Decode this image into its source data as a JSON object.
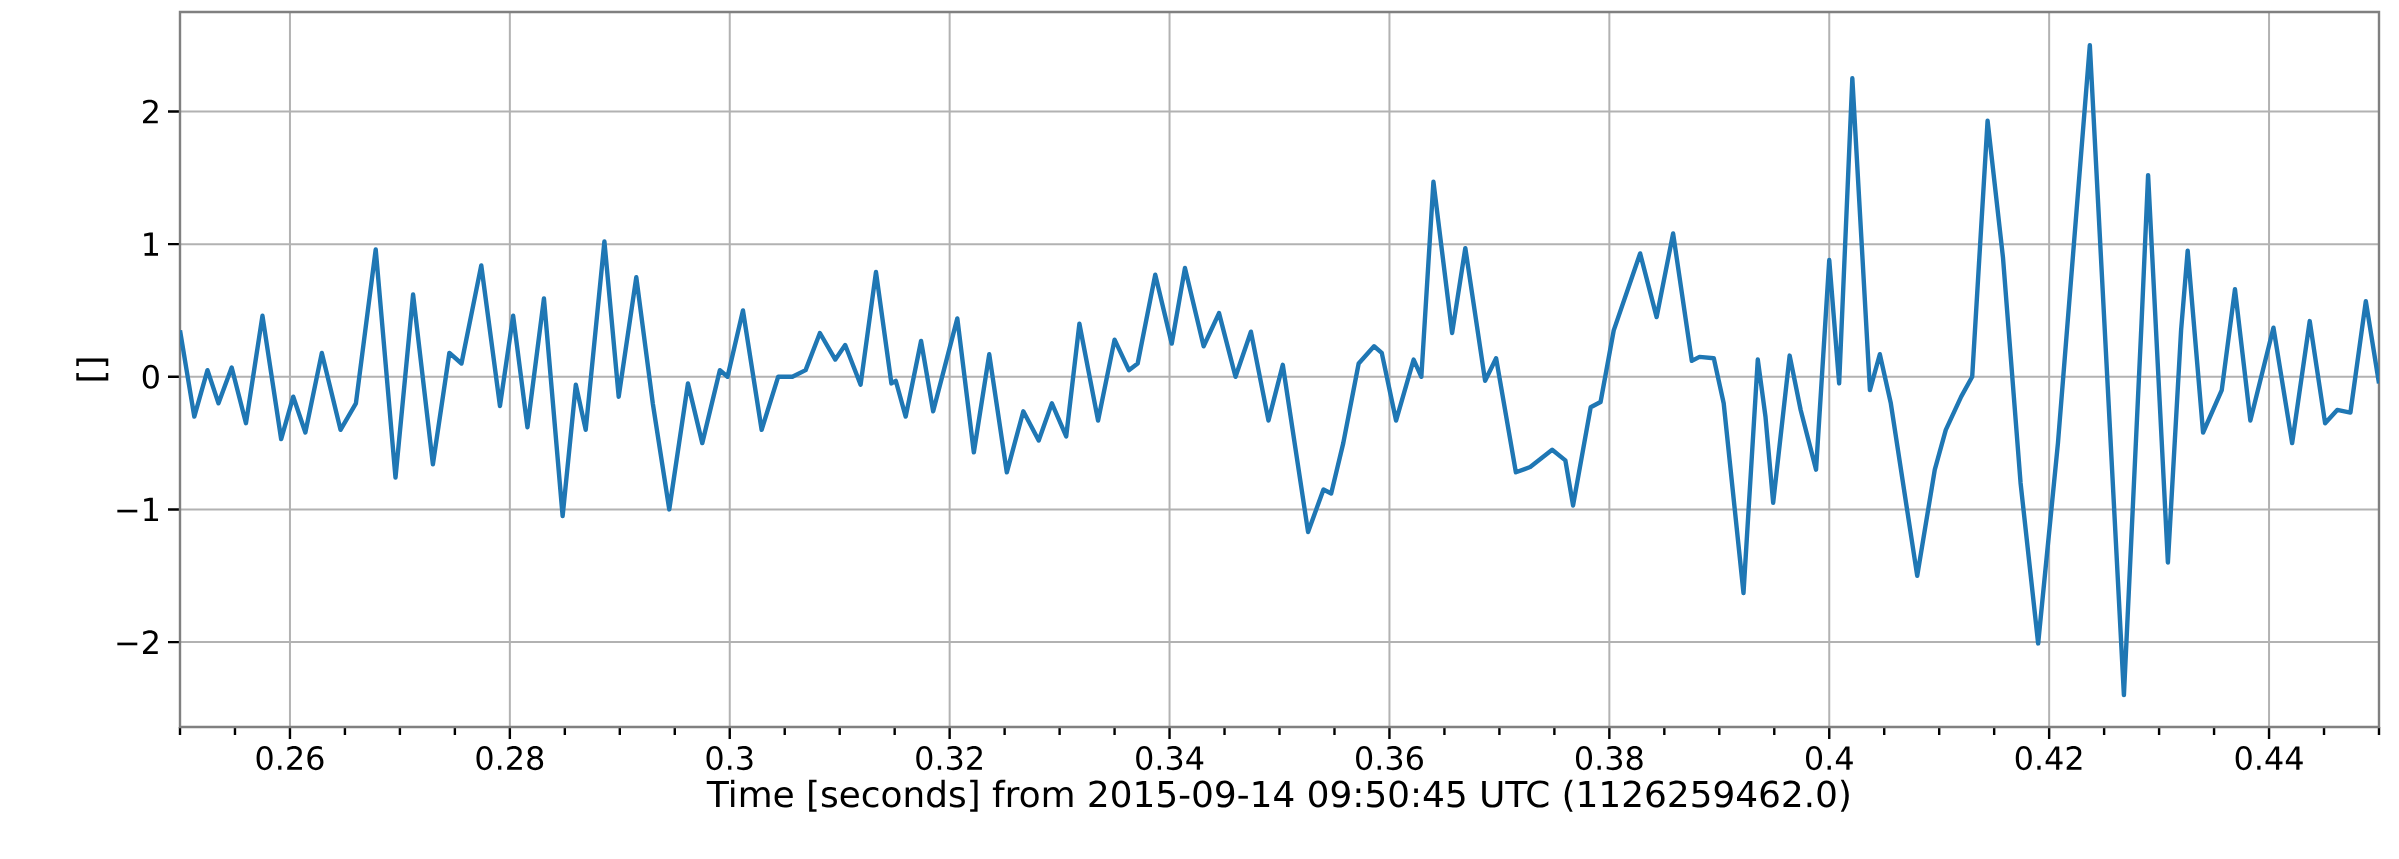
{
  "chart_data": {
    "type": "line",
    "xlabel": "Time [seconds] from 2015-09-14 09:50:45 UTC (1126259462.0)",
    "ylabel": "[]",
    "grid": true,
    "line_style": "solid",
    "marker": "none",
    "xlim": [
      0.25,
      0.45
    ],
    "ylim": [
      -2.64,
      2.75
    ],
    "xticks": [
      {
        "value": 0.25,
        "label": null
      },
      {
        "value": 0.255,
        "label": null
      },
      0.26,
      {
        "value": 0.265,
        "label": null
      },
      {
        "value": 0.27,
        "label": null
      },
      {
        "value": 0.275,
        "label": null
      },
      0.28,
      {
        "value": 0.285,
        "label": null
      },
      {
        "value": 0.29,
        "label": null
      },
      {
        "value": 0.295,
        "label": null
      },
      0.3,
      {
        "value": 0.305,
        "label": null
      },
      {
        "value": 0.31,
        "label": null
      },
      {
        "value": 0.315,
        "label": null
      },
      0.32,
      {
        "value": 0.325,
        "label": null
      },
      {
        "value": 0.33,
        "label": null
      },
      {
        "value": 0.335,
        "label": null
      },
      0.34,
      {
        "value": 0.345,
        "label": null
      },
      {
        "value": 0.35,
        "label": null
      },
      {
        "value": 0.355,
        "label": null
      },
      0.36,
      {
        "value": 0.365,
        "label": null
      },
      {
        "value": 0.37,
        "label": null
      },
      {
        "value": 0.375,
        "label": null
      },
      0.38,
      {
        "value": 0.385,
        "label": null
      },
      {
        "value": 0.39,
        "label": null
      },
      {
        "value": 0.395,
        "label": null
      },
      0.4,
      {
        "value": 0.405,
        "label": null
      },
      {
        "value": 0.41,
        "label": null
      },
      {
        "value": 0.415,
        "label": null
      },
      0.42,
      {
        "value": 0.425,
        "label": null
      },
      {
        "value": 0.43,
        "label": null
      },
      {
        "value": 0.435,
        "label": null
      },
      0.44,
      {
        "value": 0.445,
        "label": null
      },
      {
        "value": 0.45,
        "label": null
      }
    ],
    "yticks": [
      {
        "value": -2,
        "label": "−2"
      },
      {
        "value": -1,
        "label": "−1"
      },
      0,
      1,
      2
    ],
    "series": [
      {
        "color": "#1f77b4",
        "x": [
          0.25,
          0.2513,
          0.2525,
          0.2535,
          0.2547,
          0.256,
          0.2575,
          0.2592,
          0.2603,
          0.2614,
          0.2629,
          0.2646,
          0.266,
          0.2678,
          0.2696,
          0.2712,
          0.273,
          0.2745,
          0.2756,
          0.2774,
          0.2791,
          0.2803,
          0.2816,
          0.2831,
          0.2848,
          0.286,
          0.2869,
          0.2886,
          0.2899,
          0.2915,
          0.293,
          0.2945,
          0.2962,
          0.2975,
          0.2991,
          0.2998,
          0.3012,
          0.3029,
          0.3044,
          0.3057,
          0.3069,
          0.3082,
          0.3096,
          0.3105,
          0.3119,
          0.3133,
          0.3147,
          0.3151,
          0.316,
          0.3174,
          0.3185,
          0.3207,
          0.3222,
          0.3236,
          0.3252,
          0.3267,
          0.3281,
          0.3293,
          0.3306,
          0.3318,
          0.3335,
          0.335,
          0.3363,
          0.3371,
          0.3387,
          0.3402,
          0.3414,
          0.3431,
          0.3445,
          0.346,
          0.3474,
          0.349,
          0.3503,
          0.3526,
          0.354,
          0.3547,
          0.3558,
          0.3572,
          0.3586,
          0.3593,
          0.3606,
          0.3622,
          0.3629,
          0.364,
          0.3657,
          0.3669,
          0.3687,
          0.3697,
          0.3715,
          0.3728,
          0.3748,
          0.376,
          0.3767,
          0.3783,
          0.3792,
          0.3804,
          0.3828,
          0.3843,
          0.3858,
          0.3875,
          0.3882,
          0.3895,
          0.3904,
          0.3922,
          0.3935,
          0.3942,
          0.3949,
          0.3964,
          0.3974,
          0.3988,
          0.4,
          0.4009,
          0.4021,
          0.4037,
          0.4046,
          0.4056,
          0.408,
          0.4096,
          0.4106,
          0.412,
          0.413,
          0.4144,
          0.4158,
          0.4174,
          0.419,
          0.4208,
          0.4237,
          0.4268,
          0.4284,
          0.429,
          0.4308,
          0.432,
          0.4326,
          0.434,
          0.4357,
          0.4369,
          0.4383,
          0.4404,
          0.4421,
          0.4437,
          0.4451,
          0.4462,
          0.4474,
          0.4488,
          0.45
        ],
        "values": [
          0.35,
          -0.3,
          0.05,
          -0.2,
          0.07,
          -0.35,
          0.46,
          -0.47,
          -0.15,
          -0.42,
          0.18,
          -0.4,
          -0.2,
          0.96,
          -0.76,
          0.62,
          -0.66,
          0.18,
          0.1,
          0.84,
          -0.22,
          0.46,
          -0.38,
          0.59,
          -1.05,
          -0.06,
          -0.4,
          1.02,
          -0.15,
          0.75,
          -0.2,
          -1.0,
          -0.05,
          -0.5,
          0.05,
          0.0,
          0.5,
          -0.4,
          0.0,
          0.0,
          0.05,
          0.33,
          0.13,
          0.24,
          -0.06,
          0.79,
          -0.05,
          -0.03,
          -0.3,
          0.27,
          -0.26,
          0.44,
          -0.57,
          0.17,
          -0.72,
          -0.26,
          -0.48,
          -0.2,
          -0.45,
          0.4,
          -0.33,
          0.28,
          0.05,
          0.1,
          0.77,
          0.25,
          0.82,
          0.23,
          0.48,
          0.0,
          0.34,
          -0.33,
          0.09,
          -1.17,
          -0.85,
          -0.88,
          -0.5,
          0.1,
          0.23,
          0.18,
          -0.33,
          0.13,
          0.0,
          1.47,
          0.33,
          0.97,
          -0.03,
          0.14,
          -0.72,
          -0.68,
          -0.55,
          -0.63,
          -0.97,
          -0.23,
          -0.19,
          0.35,
          0.93,
          0.45,
          1.08,
          0.12,
          0.15,
          0.14,
          -0.2,
          -1.63,
          0.13,
          -0.3,
          -0.95,
          0.16,
          -0.25,
          -0.7,
          0.88,
          -0.05,
          2.25,
          -0.1,
          0.17,
          -0.2,
          -1.5,
          -0.7,
          -0.4,
          -0.15,
          0.0,
          1.93,
          0.9,
          -0.8,
          -2.01,
          -0.5,
          2.5,
          -2.4,
          0.4,
          1.52,
          -1.4,
          0.35,
          0.95,
          -0.42,
          -0.1,
          0.66,
          -0.33,
          0.37,
          -0.5,
          0.42,
          -0.35,
          -0.25,
          -0.27,
          0.57,
          -0.05
        ]
      }
    ]
  }
}
